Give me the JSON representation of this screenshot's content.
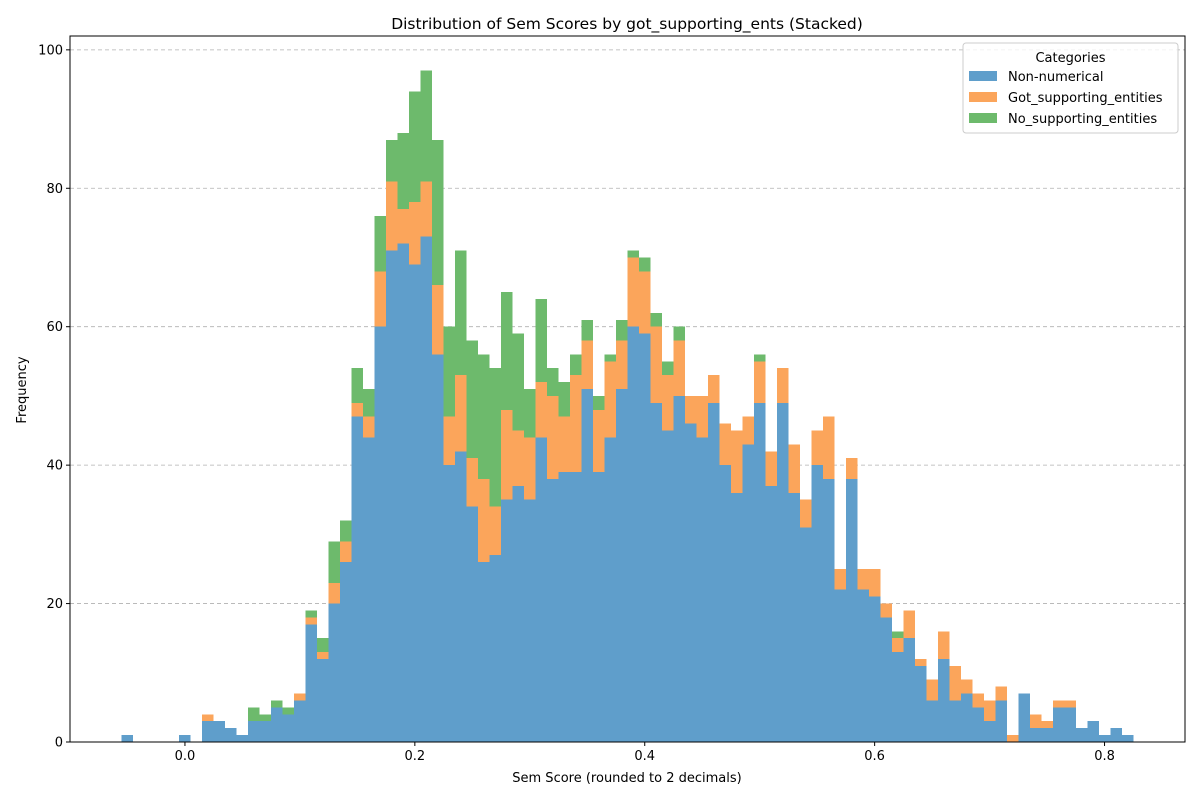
{
  "chart_data": {
    "type": "bar",
    "stacked": true,
    "title": "Distribution of Sem Scores by got_supporting_ents (Stacked)",
    "xlabel": "Sem Score (rounded to 2 decimals)",
    "ylabel": "Frequency",
    "xlim": [
      -0.1,
      0.87
    ],
    "ylim": [
      0,
      102
    ],
    "bin_width": 0.01,
    "xticks": [
      0.0,
      0.2,
      0.4,
      0.6,
      0.8
    ],
    "xtick_labels": [
      "0.0",
      "0.2",
      "0.4",
      "0.6",
      "0.8"
    ],
    "yticks": [
      0,
      20,
      40,
      60,
      80,
      100
    ],
    "ytick_labels": [
      "0",
      "20",
      "40",
      "60",
      "80",
      "100"
    ],
    "grid": "y dashed",
    "legend": {
      "title": "Categories",
      "placement": "upper-right"
    },
    "x": [
      -0.05,
      -0.04,
      -0.03,
      -0.02,
      -0.01,
      0.0,
      0.01,
      0.02,
      0.03,
      0.04,
      0.05,
      0.06,
      0.07,
      0.08,
      0.09,
      0.1,
      0.11,
      0.12,
      0.13,
      0.14,
      0.15,
      0.16,
      0.17,
      0.18,
      0.19,
      0.2,
      0.21,
      0.22,
      0.23,
      0.24,
      0.25,
      0.26,
      0.27,
      0.28,
      0.29,
      0.3,
      0.31,
      0.32,
      0.33,
      0.34,
      0.35,
      0.36,
      0.37,
      0.38,
      0.39,
      0.4,
      0.41,
      0.42,
      0.43,
      0.44,
      0.45,
      0.46,
      0.47,
      0.48,
      0.49,
      0.5,
      0.51,
      0.52,
      0.53,
      0.54,
      0.55,
      0.56,
      0.57,
      0.58,
      0.59,
      0.6,
      0.61,
      0.62,
      0.63,
      0.64,
      0.65,
      0.66,
      0.67,
      0.68,
      0.69,
      0.7,
      0.71,
      0.72,
      0.73,
      0.74,
      0.75,
      0.76,
      0.77,
      0.78,
      0.79,
      0.8,
      0.81,
      0.82
    ],
    "series": [
      {
        "name": "Non-numerical",
        "color": "#5f9ecb",
        "values": [
          1,
          0,
          0,
          0,
          0,
          1,
          0,
          3,
          3,
          2,
          1,
          3,
          3,
          5,
          4,
          6,
          17,
          12,
          20,
          26,
          47,
          44,
          60,
          71,
          72,
          69,
          73,
          56,
          40,
          42,
          34,
          26,
          27,
          35,
          37,
          35,
          44,
          38,
          39,
          39,
          51,
          39,
          44,
          51,
          60,
          59,
          49,
          45,
          50,
          46,
          44,
          49,
          40,
          36,
          43,
          49,
          37,
          49,
          36,
          31,
          40,
          38,
          22,
          38,
          22,
          21,
          18,
          13,
          15,
          11,
          6,
          12,
          6,
          7,
          5,
          3,
          6,
          0,
          7,
          2,
          2,
          5,
          5,
          2,
          3,
          1,
          2,
          1
        ]
      },
      {
        "name": "Got_supporting_entities",
        "color": "#fba55b",
        "values": [
          0,
          0,
          0,
          0,
          0,
          0,
          0,
          1,
          0,
          0,
          0,
          0,
          0,
          0,
          0,
          1,
          1,
          1,
          3,
          3,
          2,
          3,
          8,
          10,
          5,
          9,
          8,
          10,
          7,
          11,
          7,
          12,
          7,
          13,
          8,
          9,
          8,
          12,
          8,
          14,
          7,
          9,
          11,
          7,
          10,
          9,
          11,
          8,
          8,
          4,
          6,
          4,
          6,
          9,
          4,
          6,
          5,
          5,
          7,
          4,
          5,
          9,
          3,
          3,
          3,
          4,
          2,
          2,
          4,
          1,
          3,
          4,
          5,
          2,
          2,
          3,
          2,
          1,
          0,
          2,
          1,
          1,
          1,
          0,
          0,
          0,
          0,
          0
        ]
      },
      {
        "name": "No_supporting_entities",
        "color": "#6dba6c",
        "values": [
          0,
          0,
          0,
          0,
          0,
          0,
          0,
          0,
          0,
          0,
          0,
          2,
          1,
          1,
          1,
          0,
          1,
          2,
          6,
          3,
          5,
          4,
          8,
          6,
          11,
          16,
          16,
          21,
          13,
          18,
          17,
          18,
          20,
          17,
          14,
          7,
          12,
          4,
          5,
          3,
          3,
          2,
          1,
          3,
          1,
          2,
          2,
          2,
          2,
          0,
          0,
          0,
          0,
          0,
          0,
          1,
          0,
          0,
          0,
          0,
          0,
          0,
          0,
          0,
          0,
          0,
          0,
          1,
          0,
          0,
          0,
          0,
          0,
          0,
          0,
          0,
          0,
          0,
          0,
          0,
          0,
          0,
          0,
          0,
          0,
          0,
          0,
          0
        ]
      }
    ]
  }
}
